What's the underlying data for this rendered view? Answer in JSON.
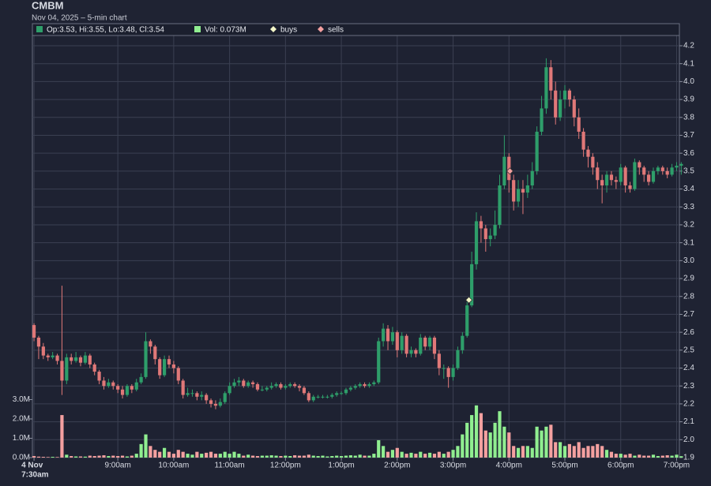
{
  "chart_data": {
    "type": "candlestick",
    "title": "CMBM",
    "subtitle": "Nov 04, 2025 – 5-min chart",
    "legend": [
      "Op:3.53, Hi:3.55, Lo:3.48, Cl:3.54",
      "Vol: 0.073M",
      "buys",
      "sells"
    ],
    "legend_colors": [
      "#2e9e6a",
      "#90ee90",
      "#f3f6c8",
      "#f4a0a0"
    ],
    "up_color": "#2e9e6a",
    "down_color": "#e07878",
    "volume_up_color": "#90ee90",
    "volume_down_color": "#f4a0a0",
    "grid": true,
    "open": [
      2.64,
      2.57,
      2.52,
      2.47,
      2.46,
      2.47,
      2.44,
      2.33,
      2.46,
      2.44,
      2.46,
      2.43,
      2.47,
      2.42,
      2.38,
      2.33,
      2.3,
      2.32,
      2.3,
      2.28,
      2.25,
      2.3,
      2.28,
      2.32,
      2.35,
      2.55,
      2.52,
      2.45,
      2.36,
      2.45,
      2.42,
      2.4,
      2.33,
      2.25,
      2.26,
      2.26,
      2.24,
      2.25,
      2.22,
      2.2,
      2.19,
      2.21,
      2.26,
      2.3,
      2.32,
      2.33,
      2.3,
      2.32,
      2.31,
      2.28,
      2.28,
      2.29,
      2.3,
      2.31,
      2.29,
      2.3,
      2.31,
      2.3,
      2.29,
      2.26,
      2.22,
      2.24,
      2.24,
      2.24,
      2.24,
      2.25,
      2.26,
      2.26,
      2.28,
      2.29,
      2.3,
      2.31,
      2.3,
      2.31,
      2.32,
      2.55,
      2.62,
      2.55,
      2.6,
      2.5,
      2.58,
      2.48,
      2.5,
      2.48,
      2.57,
      2.52,
      2.57,
      2.48,
      2.4,
      2.4,
      2.35,
      2.4,
      2.5,
      2.58,
      2.75,
      2.98,
      3.22,
      3.18,
      3.12,
      3.14,
      3.2,
      3.42,
      3.58,
      3.45,
      3.33,
      3.4,
      3.38,
      3.42,
      3.5,
      3.72,
      3.85,
      4.08,
      3.95,
      3.8,
      3.9,
      3.95,
      3.9,
      3.8,
      3.72,
      3.62,
      3.58,
      3.52,
      3.45,
      3.42,
      3.48,
      3.45,
      3.44,
      3.52,
      3.42,
      3.4,
      3.55,
      3.52,
      3.48,
      3.44,
      3.5,
      3.52,
      3.5,
      3.48,
      3.52,
      3.53
    ],
    "high": [
      2.65,
      2.58,
      2.54,
      2.48,
      2.49,
      2.48,
      2.86,
      2.48,
      2.48,
      2.49,
      2.47,
      2.49,
      2.48,
      2.43,
      2.39,
      2.35,
      2.34,
      2.33,
      2.31,
      2.3,
      2.31,
      2.31,
      2.34,
      2.37,
      2.6,
      2.56,
      2.53,
      2.46,
      2.47,
      2.47,
      2.44,
      2.41,
      2.34,
      2.29,
      2.28,
      2.27,
      2.27,
      2.26,
      2.23,
      2.22,
      2.23,
      2.27,
      2.32,
      2.34,
      2.35,
      2.34,
      2.33,
      2.33,
      2.32,
      2.3,
      2.3,
      2.32,
      2.32,
      2.32,
      2.31,
      2.32,
      2.32,
      2.31,
      2.3,
      2.27,
      2.25,
      2.25,
      2.25,
      2.25,
      2.26,
      2.27,
      2.27,
      2.29,
      2.3,
      2.31,
      2.32,
      2.32,
      2.32,
      2.33,
      2.57,
      2.65,
      2.64,
      2.63,
      2.61,
      2.6,
      2.59,
      2.52,
      2.51,
      2.59,
      2.58,
      2.58,
      2.58,
      2.5,
      2.42,
      2.41,
      2.42,
      2.52,
      2.6,
      2.77,
      3.05,
      3.27,
      3.25,
      3.2,
      3.18,
      3.28,
      3.48,
      3.7,
      3.6,
      3.48,
      3.45,
      3.45,
      3.48,
      3.55,
      3.75,
      3.92,
      4.13,
      4.12,
      4.0,
      3.95,
      3.98,
      3.96,
      3.92,
      3.85,
      3.74,
      3.64,
      3.6,
      3.55,
      3.48,
      3.5,
      3.5,
      3.47,
      3.54,
      3.53,
      3.44,
      3.57,
      3.56,
      3.53,
      3.5,
      3.52,
      3.53,
      3.53,
      3.52,
      3.54,
      3.55,
      3.55
    ],
    "low": [
      2.55,
      2.45,
      2.45,
      2.44,
      2.45,
      2.42,
      2.25,
      2.31,
      2.42,
      2.43,
      2.41,
      2.42,
      2.4,
      2.36,
      2.31,
      2.28,
      2.29,
      2.28,
      2.26,
      2.23,
      2.24,
      2.26,
      2.27,
      2.31,
      2.34,
      2.48,
      2.42,
      2.34,
      2.35,
      2.4,
      2.37,
      2.31,
      2.23,
      2.24,
      2.24,
      2.22,
      2.22,
      2.2,
      2.18,
      2.17,
      2.18,
      2.2,
      2.25,
      2.29,
      2.3,
      2.29,
      2.29,
      2.29,
      2.27,
      2.27,
      2.27,
      2.28,
      2.29,
      2.28,
      2.28,
      2.29,
      2.29,
      2.27,
      2.25,
      2.21,
      2.21,
      2.23,
      2.23,
      2.23,
      2.23,
      2.24,
      2.25,
      2.25,
      2.27,
      2.28,
      2.29,
      2.29,
      2.29,
      2.3,
      2.31,
      2.52,
      2.5,
      2.53,
      2.46,
      2.48,
      2.46,
      2.46,
      2.46,
      2.47,
      2.5,
      2.5,
      2.45,
      2.36,
      2.34,
      2.29,
      2.33,
      2.39,
      2.48,
      2.57,
      2.74,
      2.95,
      3.1,
      3.05,
      3.08,
      3.12,
      3.18,
      3.4,
      3.38,
      3.28,
      3.3,
      3.26,
      3.35,
      3.4,
      3.48,
      3.7,
      3.82,
      3.9,
      3.76,
      3.78,
      3.85,
      3.86,
      3.75,
      3.68,
      3.58,
      3.52,
      3.48,
      3.4,
      3.32,
      3.38,
      3.42,
      3.4,
      3.42,
      3.38,
      3.38,
      3.39,
      3.48,
      3.44,
      3.42,
      3.43,
      3.48,
      3.48,
      3.46,
      3.47,
      3.5,
      3.48
    ],
    "close": [
      2.57,
      2.52,
      2.47,
      2.46,
      2.47,
      2.44,
      2.33,
      2.46,
      2.44,
      2.46,
      2.43,
      2.47,
      2.42,
      2.38,
      2.33,
      2.3,
      2.32,
      2.3,
      2.28,
      2.25,
      2.3,
      2.28,
      2.32,
      2.35,
      2.55,
      2.52,
      2.45,
      2.36,
      2.45,
      2.42,
      2.4,
      2.33,
      2.25,
      2.26,
      2.26,
      2.24,
      2.25,
      2.22,
      2.2,
      2.19,
      2.21,
      2.26,
      2.3,
      2.32,
      2.33,
      2.3,
      2.32,
      2.31,
      2.28,
      2.28,
      2.29,
      2.3,
      2.31,
      2.29,
      2.3,
      2.31,
      2.3,
      2.29,
      2.26,
      2.22,
      2.24,
      2.24,
      2.24,
      2.24,
      2.25,
      2.26,
      2.26,
      2.28,
      2.29,
      2.3,
      2.31,
      2.3,
      2.31,
      2.32,
      2.55,
      2.62,
      2.55,
      2.6,
      2.5,
      2.58,
      2.48,
      2.5,
      2.48,
      2.57,
      2.52,
      2.57,
      2.48,
      2.4,
      2.4,
      2.35,
      2.4,
      2.5,
      2.58,
      2.75,
      2.98,
      3.22,
      3.18,
      3.12,
      3.14,
      3.2,
      3.42,
      3.58,
      3.45,
      3.33,
      3.4,
      3.38,
      3.42,
      3.5,
      3.72,
      3.85,
      4.08,
      3.95,
      3.8,
      3.9,
      3.95,
      3.9,
      3.8,
      3.72,
      3.62,
      3.58,
      3.52,
      3.45,
      3.42,
      3.48,
      3.45,
      3.44,
      3.52,
      3.42,
      3.4,
      3.55,
      3.52,
      3.48,
      3.44,
      3.5,
      3.52,
      3.5,
      3.48,
      3.52,
      3.53,
      3.54
    ],
    "volume": [
      0.08,
      0.05,
      0.04,
      0.03,
      0.04,
      0.03,
      2.2,
      0.15,
      0.08,
      0.06,
      0.06,
      0.05,
      0.1,
      0.08,
      0.1,
      0.12,
      0.08,
      0.1,
      0.08,
      0.1,
      0.06,
      0.1,
      0.2,
      0.7,
      1.2,
      0.6,
      0.4,
      0.3,
      0.5,
      0.3,
      0.2,
      0.4,
      0.3,
      0.2,
      0.15,
      0.3,
      0.2,
      0.25,
      0.3,
      0.2,
      0.2,
      0.3,
      0.2,
      0.3,
      0.2,
      0.1,
      0.15,
      0.1,
      0.08,
      0.1,
      0.1,
      0.12,
      0.1,
      0.08,
      0.1,
      0.08,
      0.12,
      0.1,
      0.1,
      0.15,
      0.1,
      0.08,
      0.1,
      0.06,
      0.08,
      0.1,
      0.08,
      0.1,
      0.12,
      0.1,
      0.15,
      0.1,
      0.1,
      0.2,
      0.9,
      0.6,
      0.3,
      0.4,
      0.5,
      0.3,
      0.2,
      0.25,
      0.2,
      0.3,
      0.2,
      0.25,
      0.2,
      0.3,
      0.2,
      0.3,
      0.4,
      0.6,
      1.2,
      1.8,
      2.2,
      2.7,
      2.3,
      1.4,
      1.3,
      1.8,
      2.4,
      1.6,
      1.3,
      0.6,
      0.5,
      0.6,
      0.6,
      0.5,
      1.6,
      1.4,
      1.6,
      1.7,
      0.8,
      0.8,
      0.6,
      0.7,
      0.6,
      0.8,
      0.5,
      0.6,
      0.6,
      0.7,
      0.6,
      0.4,
      0.3,
      0.2,
      0.2,
      0.15,
      0.2,
      0.1,
      0.15,
      0.1,
      0.1,
      0.15,
      0.08,
      0.1,
      0.12,
      0.1,
      0.15,
      0.073
    ],
    "buys": [
      {
        "x": 93.4,
        "y": 2.78
      }
    ],
    "sells": [
      {
        "x": 102.2,
        "y": 3.5
      }
    ],
    "xlim": [
      -0.35,
      138.6
    ],
    "xticks": [
      {
        "value": 0,
        "label": [
          "4 Nov",
          "7:30am"
        ]
      },
      {
        "value": 18,
        "label": "9:00am"
      },
      {
        "value": 30,
        "label": "10:00am"
      },
      {
        "value": 42,
        "label": "11:00am"
      },
      {
        "value": 54,
        "label": "12:00pm"
      },
      {
        "value": 66,
        "label": "1:00pm"
      },
      {
        "value": 78,
        "label": "2:00pm"
      },
      {
        "value": 90,
        "label": "3:00pm"
      },
      {
        "value": 102,
        "label": "4:00pm"
      },
      {
        "value": 114,
        "label": "5:00pm"
      },
      {
        "value": 126,
        "label": "6:00pm"
      },
      {
        "value": 138,
        "label": "7:00pm"
      }
    ],
    "ylim": [
      1.9,
      4.2
    ],
    "yticks": [
      1.9,
      {
        "value": 2.0,
        "label": "2.0"
      },
      2.1,
      2.2,
      2.3,
      2.4,
      2.5,
      2.6,
      2.7,
      2.8,
      2.9,
      {
        "value": 3.0,
        "label": "3.0"
      },
      3.1,
      3.2,
      3.3,
      3.4,
      3.5,
      3.6,
      3.7,
      3.8,
      3.9,
      {
        "value": 4.0,
        "label": "4.0"
      },
      4.1,
      4.2
    ],
    "y2lim": [
      0,
      21.3
    ],
    "y2ticks": [
      {
        "value": 0,
        "label": "0.0M"
      },
      {
        "value": 1,
        "label": "1.0M"
      },
      {
        "value": 2,
        "label": "2.0M"
      },
      {
        "value": 3,
        "label": "3.0M"
      }
    ]
  }
}
